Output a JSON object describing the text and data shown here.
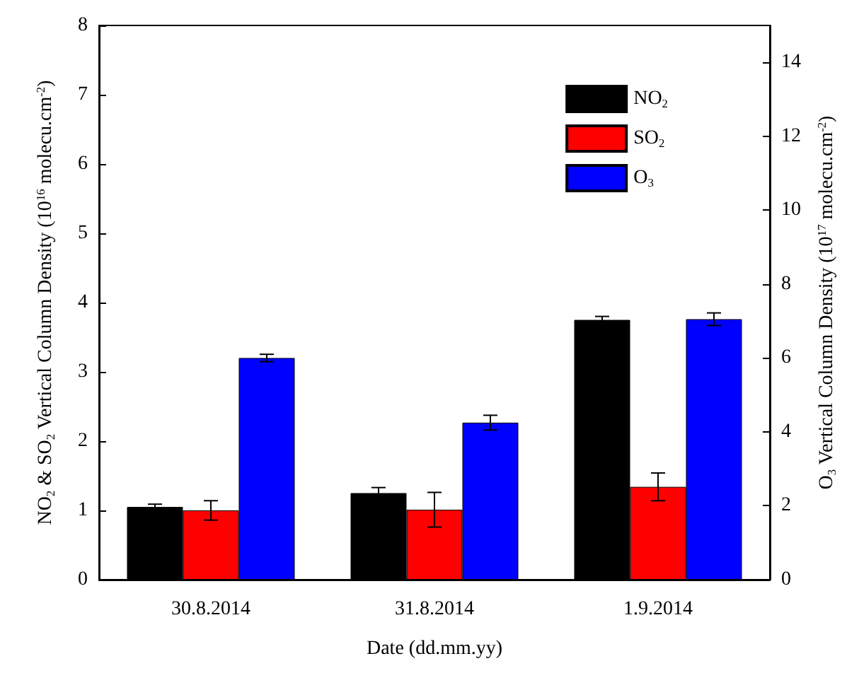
{
  "chart_data": {
    "type": "bar",
    "xlabel": "Date (dd.mm.yy)",
    "ylabel": "NO$_{2}$ & SO$_{2}$ Vertical Column Density (10$^{16}$ molecu.cm$^{-2}$)",
    "y2label": "O$_{3}$ Vertical Column Density (10$^{17}$ molecu.cm$^{-2}$)",
    "categories": [
      "30.8.2014",
      "31.8.2014",
      "1.9.2014"
    ],
    "series": [
      {
        "name": "NO$_{2}$",
        "color": "#000000",
        "values": [
          1.05,
          1.25,
          3.75
        ],
        "errors": [
          0.04,
          0.08,
          0.05
        ]
      },
      {
        "name": "SO$_{2}$",
        "color": "#ff0000",
        "values": [
          1.0,
          1.01,
          1.34
        ],
        "errors": [
          0.14,
          0.25,
          0.2
        ]
      },
      {
        "name": "O$_{3}$",
        "color": "#0000ff",
        "axis": "y2",
        "values": [
          6.0,
          4.25,
          7.05
        ],
        "errors": [
          0.1,
          0.2,
          0.17
        ]
      }
    ],
    "ylim": [
      0,
      8
    ],
    "yticks": [
      0,
      1,
      2,
      3,
      4,
      5,
      6,
      7,
      8
    ],
    "y2lim": [
      0,
      15
    ],
    "y2ticks": [
      0,
      2,
      4,
      6,
      8,
      10,
      12,
      14
    ],
    "grid": false,
    "legend": "top right"
  }
}
